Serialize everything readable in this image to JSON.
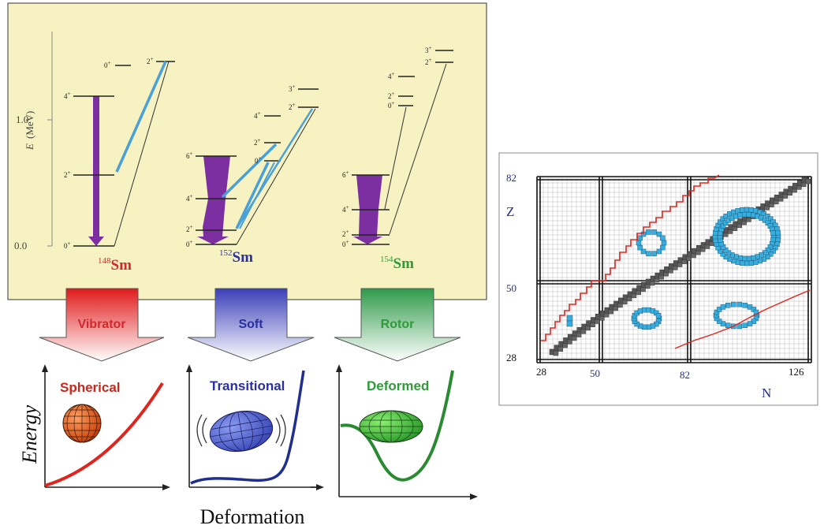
{
  "level_scheme": {
    "axis_label": "E",
    "axis_unit": "(MeV)",
    "ticks": [
      "0.0",
      "1.0"
    ],
    "nuclei": [
      {
        "mass": "148",
        "symbol": "Sm",
        "color": "#d2282e",
        "levels": [
          "0+",
          "2+",
          "4+",
          "0+",
          "2+"
        ]
      },
      {
        "mass": "152",
        "symbol": "Sm",
        "color": "#2a2fa0",
        "levels": [
          "0+",
          "2+",
          "4+",
          "6+",
          "0+",
          "2+",
          "4+",
          "2+",
          "3+"
        ]
      },
      {
        "mass": "154",
        "symbol": "Sm",
        "color": "#2f9a3a",
        "levels": [
          "0+",
          "2+",
          "4+",
          "6+",
          "0+",
          "2+",
          "4+",
          "2+",
          "3+"
        ]
      }
    ]
  },
  "arrows": [
    {
      "label": "Vibrator",
      "color": "#d2282e"
    },
    {
      "label": "Soft",
      "color": "#2a2fa0"
    },
    {
      "label": "Rotor",
      "color": "#2f9a3a"
    }
  ],
  "potentials": [
    {
      "title": "Spherical",
      "color": "#d2282e"
    },
    {
      "title": "Transitional",
      "color": "#2a2fa0"
    },
    {
      "title": "Deformed",
      "color": "#2f9a3a"
    }
  ],
  "energy_label": "Energy",
  "deformation_label": "Deformation",
  "chart": {
    "z_label": "Z",
    "n_label": "N",
    "z_ticks": [
      "82",
      "50",
      "28"
    ],
    "n_ticks": [
      "28",
      "50",
      "82",
      "126"
    ]
  },
  "colors": {
    "panel_bg": "#f7f2c2",
    "level_line": "#222222",
    "purple_band": "#7b2fa0",
    "transition": "#4aa0d8",
    "island": "#38aee0",
    "valley": "#555555",
    "dripline": "#e0251e"
  }
}
